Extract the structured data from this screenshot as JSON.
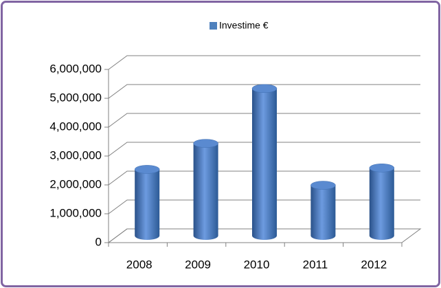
{
  "chart_data": {
    "type": "bar3d",
    "categories": [
      "2008",
      "2009",
      "2010",
      "2011",
      "2012"
    ],
    "series": [
      {
        "name": "Investime €",
        "color": "#4f81bd",
        "values": [
          2300000,
          3200000,
          5100000,
          1750000,
          2350000
        ]
      }
    ],
    "ylim": [
      0,
      6000000
    ],
    "yticks": [
      0,
      {
        "value": 1000000,
        "label": "1,000,000"
      },
      {
        "value": 2000000,
        "label": "2,000,000"
      },
      {
        "value": 3000000,
        "label": "3,000,000"
      },
      {
        "value": 4000000,
        "label": "4,000,000"
      },
      {
        "value": 5000000,
        "label": "5,000,000"
      },
      {
        "value": 6000000,
        "label": "6,000,000"
      }
    ],
    "grid": true,
    "legend": "top"
  }
}
